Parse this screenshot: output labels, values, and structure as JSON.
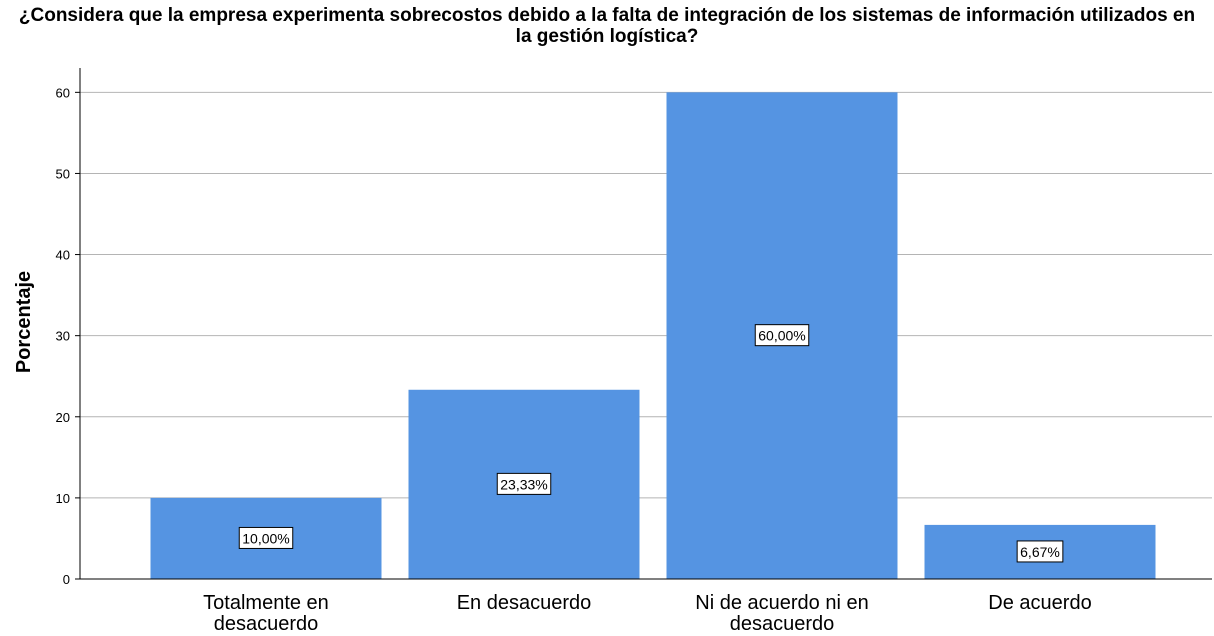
{
  "chart_data": {
    "type": "bar",
    "title": "¿Considera que la empresa experimenta sobrecostos debido a la falta de integración de los sistemas de información utilizados en la gestión logística?",
    "y_label": "Porcentaje",
    "categories": [
      "Totalmente en desacuerdo",
      "En desacuerdo",
      "Ni de acuerdo ni en desacuerdo",
      "De acuerdo"
    ],
    "values": [
      10,
      23.33,
      60,
      6.67
    ],
    "value_labels": [
      "10,00%",
      "23,33%",
      "60,00%",
      "6,67%"
    ],
    "color": "#5594e2",
    "ylim": [
      0,
      63
    ],
    "yticks": [
      0,
      10,
      20,
      30,
      40,
      50,
      60
    ],
    "grid": true
  }
}
